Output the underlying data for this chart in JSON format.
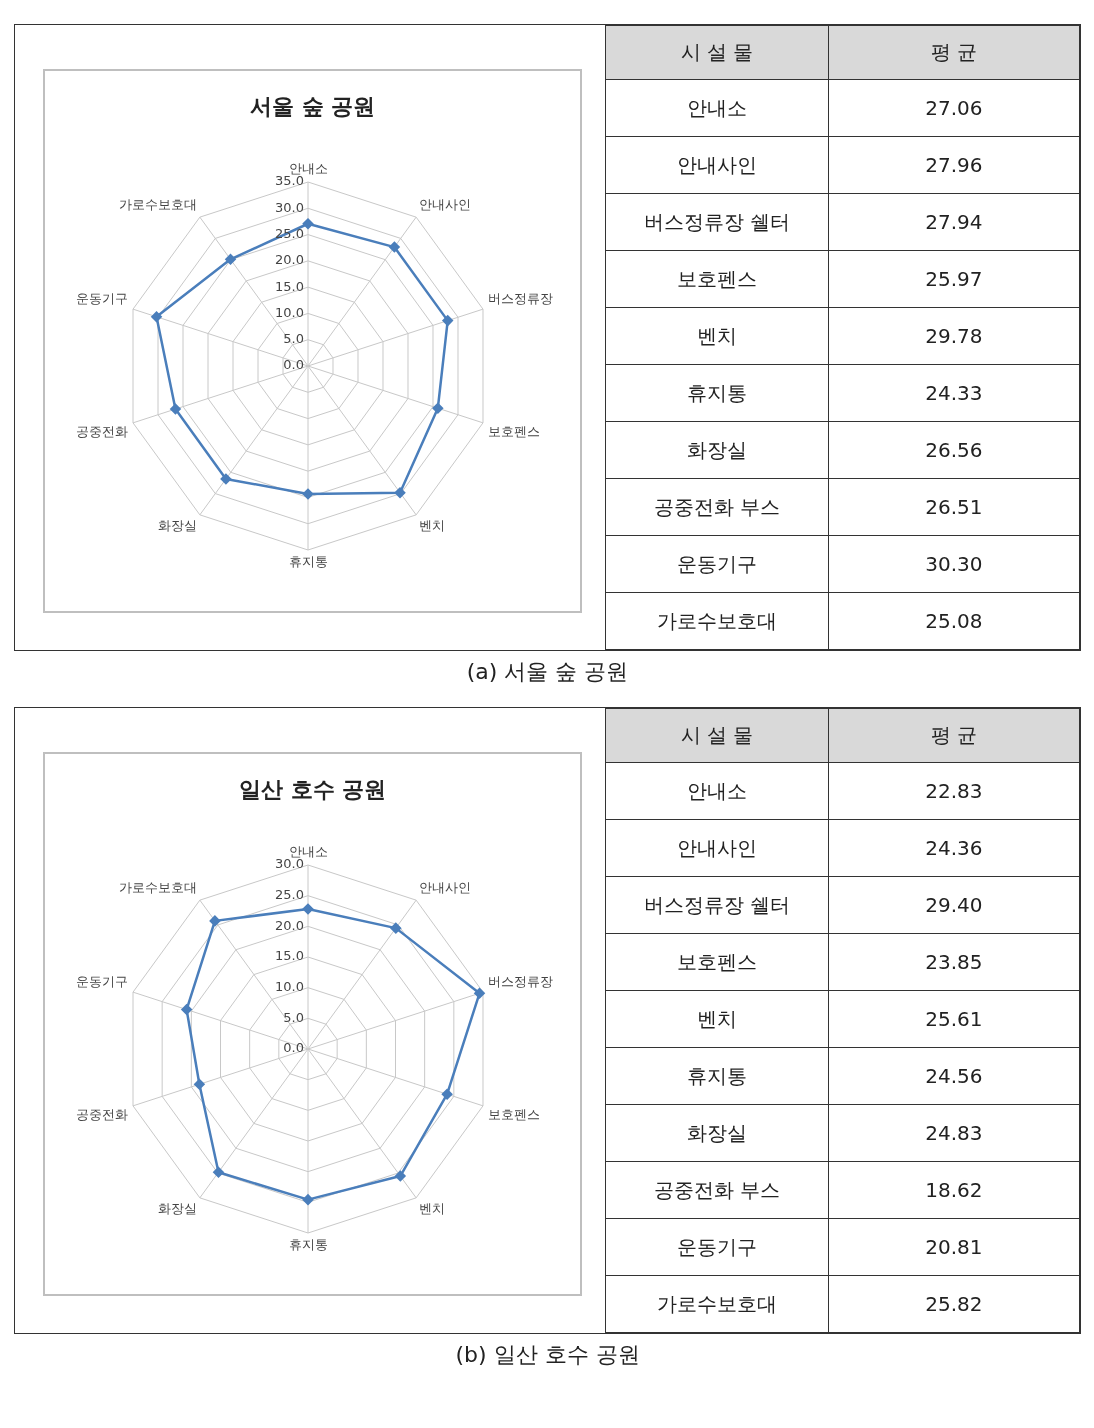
{
  "chart_data": [
    {
      "type": "radar",
      "title": "서울 숲 공원",
      "annotations": [
        "(a) 서울 숲 공원"
      ],
      "categories": [
        "안내소",
        "안내사인",
        "버스정류장",
        "보호펜스",
        "벤치",
        "휴지통",
        "화장실",
        "공중전화",
        "운동기구",
        "가로수보호대"
      ],
      "series": [
        {
          "color": "#4a7ebb",
          "values": [
            27.06,
            27.96,
            27.94,
            25.97,
            29.78,
            24.33,
            26.56,
            26.51,
            30.3,
            25.08
          ]
        }
      ],
      "ylim": [
        0,
        35
      ],
      "yticks": [
        {
          "value": 0,
          "label": "0.0"
        },
        {
          "value": 5,
          "label": "5.0"
        },
        {
          "value": 10,
          "label": "10.0"
        },
        {
          "value": 15,
          "label": "15.0"
        },
        {
          "value": 20,
          "label": "20.0"
        },
        {
          "value": 25,
          "label": "25.0"
        },
        {
          "value": 30,
          "label": "30.0"
        },
        {
          "value": 35,
          "label": "35.0"
        }
      ],
      "grid": true,
      "legend": false,
      "marker": "diamond",
      "line_style": "solid"
    },
    {
      "type": "other",
      "annotations": [
        "시 설 물",
        "평 균"
      ],
      "categories": [
        "안내소",
        "안내사인",
        "버스정류장 쉘터",
        "보호펜스",
        "벤치",
        "휴지통",
        "화장실",
        "공중전화 부스",
        "운동기구",
        "가로수보호대"
      ],
      "value_labels": [
        "27.06",
        "27.96",
        "27.94",
        "25.97",
        "29.78",
        "24.33",
        "26.56",
        "26.51",
        "30.30",
        "25.08"
      ]
    },
    {
      "type": "radar",
      "title": "일산 호수 공원",
      "annotations": [
        "(b) 일산 호수 공원"
      ],
      "categories": [
        "안내소",
        "안내사인",
        "버스정류장",
        "보호펜스",
        "벤치",
        "휴지통",
        "화장실",
        "공중전화",
        "운동기구",
        "가로수보호대"
      ],
      "series": [
        {
          "color": "#4a7ebb",
          "values": [
            22.83,
            24.36,
            29.4,
            23.85,
            25.61,
            24.56,
            24.83,
            18.62,
            20.81,
            25.82
          ]
        }
      ],
      "ylim": [
        0,
        30
      ],
      "yticks": [
        {
          "value": 0,
          "label": "0.0"
        },
        {
          "value": 5,
          "label": "5.0"
        },
        {
          "value": 10,
          "label": "10.0"
        },
        {
          "value": 15,
          "label": "15.0"
        },
        {
          "value": 20,
          "label": "20.0"
        },
        {
          "value": 25,
          "label": "25.0"
        },
        {
          "value": 30,
          "label": "30.0"
        }
      ],
      "grid": true,
      "legend": false,
      "marker": "diamond",
      "line_style": "solid"
    },
    {
      "type": "other",
      "annotations": [
        "시 설 물",
        "평 균"
      ],
      "categories": [
        "안내소",
        "안내사인",
        "버스정류장 쉘터",
        "보호펜스",
        "벤치",
        "휴지통",
        "화장실",
        "공중전화 부스",
        "운동기구",
        "가로수보호대"
      ],
      "value_labels": [
        "22.83",
        "24.36",
        "29.40",
        "23.85",
        "25.61",
        "24.56",
        "24.83",
        "18.62",
        "20.81",
        "25.82"
      ]
    }
  ]
}
